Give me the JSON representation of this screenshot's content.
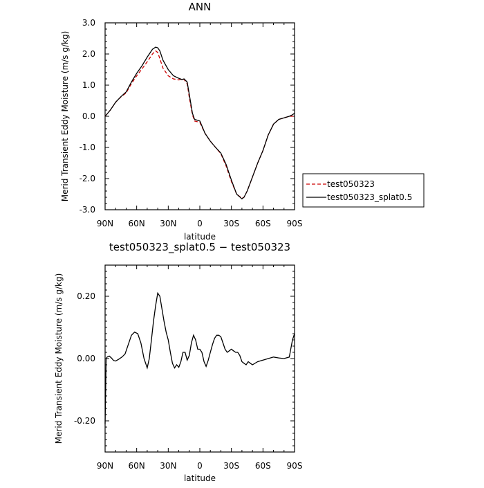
{
  "chart_data": [
    {
      "type": "line",
      "title": "ANN",
      "xlabel": "latitude",
      "ylabel": "Merid Transient Eddy Moisture  (m/s g/kg)",
      "xlim": [
        -90,
        90
      ],
      "ylim": [
        -3.0,
        3.0
      ],
      "x_tick_values": [
        -90,
        -60,
        -30,
        0,
        30,
        60,
        90
      ],
      "x_tick_labels": [
        "90N",
        "60N",
        "30N",
        "0",
        "30S",
        "60S",
        "90S"
      ],
      "y_tick_values": [
        -3,
        -2,
        -1,
        0,
        1,
        2,
        3
      ],
      "y_tick_labels": [
        "-3.0",
        "-2.0",
        "-1.0",
        "0.0",
        "1.0",
        "2.0",
        "3.0"
      ],
      "legend_position": "right",
      "series": [
        {
          "name": "test050323",
          "color": "#cc0000",
          "dash": "dashed",
          "x": [
            -90,
            -85,
            -80,
            -75,
            -70,
            -65,
            -60,
            -55,
            -50,
            -45,
            -42,
            -40,
            -38,
            -35,
            -30,
            -25,
            -20,
            -17,
            -15,
            -12,
            -10,
            -7,
            -5,
            -3,
            0,
            5,
            10,
            15,
            20,
            25,
            30,
            35,
            40,
            42,
            45,
            50,
            55,
            60,
            65,
            70,
            75,
            80,
            85,
            88,
            90
          ],
          "y": [
            0.0,
            0.2,
            0.45,
            0.62,
            0.75,
            1.05,
            1.3,
            1.52,
            1.75,
            2.0,
            2.1,
            2.05,
            1.85,
            1.55,
            1.3,
            1.2,
            1.17,
            1.2,
            1.18,
            1.05,
            0.6,
            0.05,
            -0.15,
            -0.17,
            -0.2,
            -0.55,
            -0.8,
            -1.0,
            -1.2,
            -1.6,
            -2.1,
            -2.5,
            -2.63,
            -2.6,
            -2.4,
            -1.95,
            -1.5,
            -1.1,
            -0.6,
            -0.25,
            -0.1,
            -0.05,
            0.0,
            0.0,
            0.0
          ]
        },
        {
          "name": "test050323_splat0.5",
          "color": "#000000",
          "dash": "solid",
          "x": [
            -90,
            -85,
            -80,
            -75,
            -70,
            -65,
            -60,
            -55,
            -50,
            -45,
            -42,
            -40,
            -38,
            -35,
            -30,
            -25,
            -20,
            -17,
            -15,
            -12,
            -10,
            -7,
            -5,
            -3,
            0,
            5,
            10,
            15,
            20,
            25,
            30,
            35,
            40,
            42,
            45,
            50,
            55,
            60,
            65,
            70,
            75,
            80,
            85,
            88,
            90
          ],
          "y": [
            0.0,
            0.2,
            0.45,
            0.63,
            0.78,
            1.1,
            1.38,
            1.62,
            1.9,
            2.15,
            2.22,
            2.2,
            2.1,
            1.8,
            1.5,
            1.3,
            1.22,
            1.18,
            1.2,
            1.1,
            0.7,
            0.1,
            -0.1,
            -0.12,
            -0.15,
            -0.55,
            -0.8,
            -1.0,
            -1.18,
            -1.55,
            -2.05,
            -2.5,
            -2.65,
            -2.6,
            -2.4,
            -1.95,
            -1.5,
            -1.1,
            -0.6,
            -0.25,
            -0.1,
            -0.05,
            0.0,
            0.05,
            0.1
          ]
        }
      ]
    },
    {
      "type": "line",
      "title": "test050323_splat0.5 − test050323",
      "xlabel": "latitude",
      "ylabel": "Merid Transient Eddy Moisture  (m/s g/kg)",
      "xlim": [
        -90,
        90
      ],
      "ylim": [
        -0.3,
        0.3
      ],
      "x_tick_values": [
        -90,
        -60,
        -30,
        0,
        30,
        60,
        90
      ],
      "x_tick_labels": [
        "90N",
        "60N",
        "30N",
        "0",
        "30S",
        "60S",
        "90S"
      ],
      "y_tick_values": [
        -0.2,
        0.0,
        0.2
      ],
      "y_tick_labels": [
        "-0.20",
        "0.00",
        "0.20"
      ],
      "series": [
        {
          "color": "#000000",
          "dash": "solid",
          "x": [
            -90,
            -89.5,
            -89,
            -88,
            -86,
            -84,
            -82,
            -80,
            -77,
            -74,
            -71,
            -68,
            -65,
            -62,
            -59,
            -56,
            -53,
            -50,
            -48,
            -46,
            -44,
            -42,
            -40,
            -38,
            -36,
            -34,
            -32,
            -30,
            -28,
            -26,
            -24,
            -22,
            -20,
            -18,
            -16,
            -14,
            -12,
            -10,
            -8,
            -6,
            -4,
            -2,
            0,
            2,
            4,
            6,
            8,
            10,
            12,
            14,
            16,
            18,
            20,
            22,
            24,
            26,
            28,
            30,
            32,
            34,
            36,
            38,
            40,
            42,
            44,
            46,
            48,
            50,
            55,
            60,
            65,
            70,
            75,
            80,
            85,
            88,
            90
          ],
          "y": [
            -0.21,
            -0.1,
            0.0,
            0.005,
            0.008,
            0.002,
            -0.006,
            -0.008,
            -0.002,
            0.005,
            0.015,
            0.045,
            0.075,
            0.085,
            0.08,
            0.05,
            0.0,
            -0.03,
            0.0,
            0.06,
            0.12,
            0.17,
            0.21,
            0.2,
            0.16,
            0.12,
            0.085,
            0.06,
            0.02,
            -0.015,
            -0.03,
            -0.02,
            -0.028,
            -0.01,
            0.02,
            0.02,
            -0.005,
            0.01,
            0.05,
            0.075,
            0.06,
            0.03,
            0.03,
            0.02,
            -0.01,
            -0.025,
            -0.005,
            0.02,
            0.045,
            0.065,
            0.075,
            0.075,
            0.07,
            0.05,
            0.03,
            0.02,
            0.025,
            0.03,
            0.025,
            0.02,
            0.02,
            0.01,
            -0.01,
            -0.015,
            -0.02,
            -0.01,
            -0.015,
            -0.02,
            -0.01,
            -0.005,
            0.0,
            0.005,
            0.002,
            0.0,
            0.005,
            0.06,
            0.08
          ]
        }
      ]
    }
  ]
}
